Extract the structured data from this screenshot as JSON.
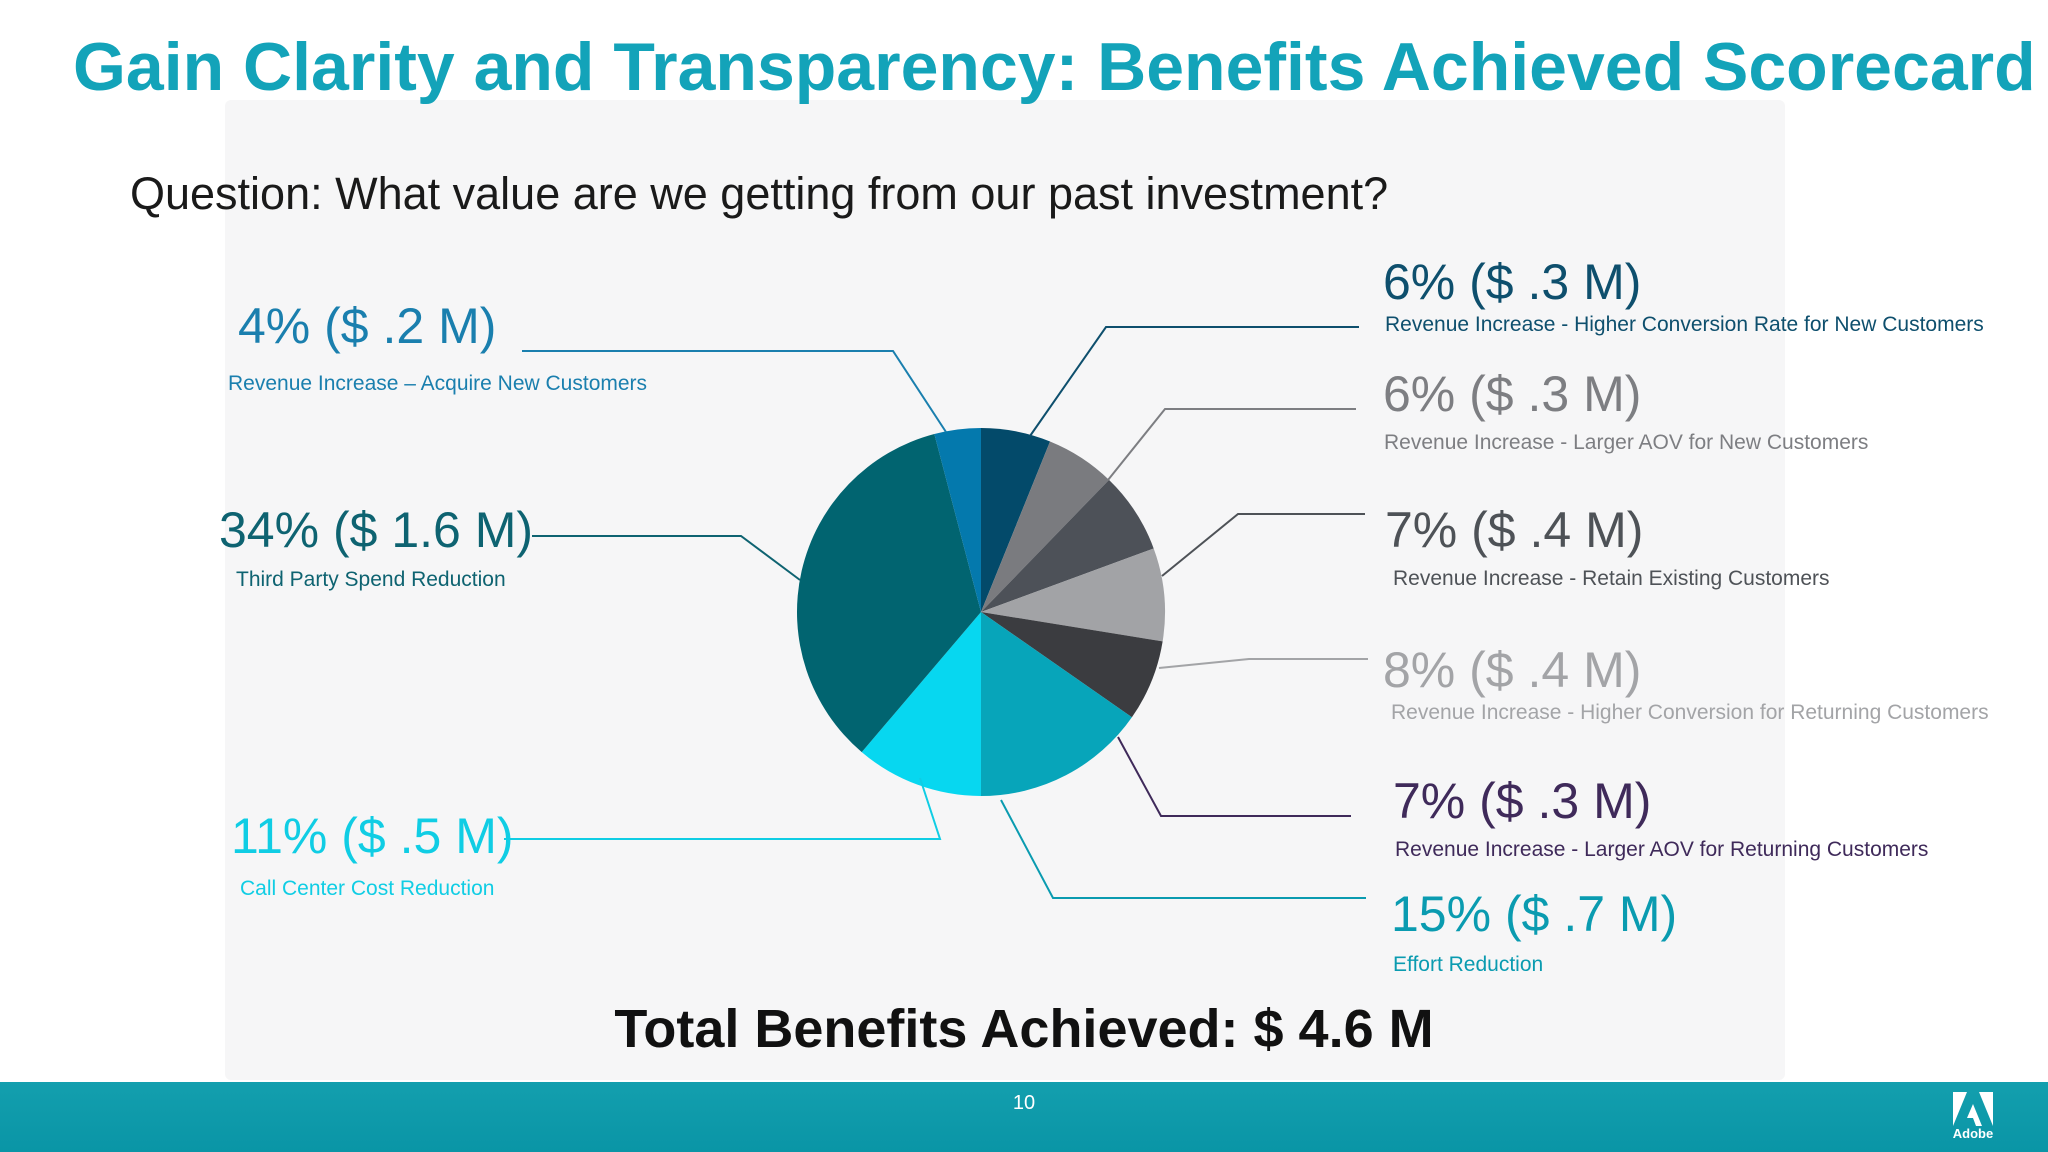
{
  "slide": {
    "title": "Gain Clarity and Transparency: Benefits Achieved Scorecard",
    "question": "Question: What value are we getting from our past investment?",
    "total": "Total Benefits Achieved: $ 4.6 M",
    "page_number": "10",
    "logo_text": "Adobe",
    "title_color": "#13a3b9",
    "footer_color": "#0a9aab"
  },
  "chart_data": {
    "type": "pie",
    "title": "",
    "slices": [
      {
        "id": "conv-new",
        "percent": 6,
        "value_m": 0.3,
        "value_label": "6% ($ .3 M)",
        "description": "Revenue Increase  - Higher Conversion Rate for New Customers",
        "color": "#034a6a",
        "label_color": "#0e4f6d"
      },
      {
        "id": "aov-new",
        "percent": 6,
        "value_m": 0.3,
        "value_label": "6% ($ .3 M)",
        "description": "Revenue Increase  - Larger AOV for New Customers",
        "color": "#7a7b7f",
        "label_color": "#7d7e82"
      },
      {
        "id": "retain",
        "percent": 7,
        "value_m": 0.4,
        "value_label": "7% ($ .4 M)",
        "description": "Revenue Increase  - Retain Existing Customers",
        "color": "#4d5158",
        "label_color": "#4e5257"
      },
      {
        "id": "conv-ret",
        "percent": 8,
        "value_m": 0.4,
        "value_label": "8% ($ .4 M)",
        "description": "Revenue Increase  - Higher Conversion for Returning Customers",
        "color": "#a2a3a6",
        "label_color": "#a3a4a7"
      },
      {
        "id": "aov-ret",
        "percent": 7,
        "value_m": 0.3,
        "value_label": "7% ($ .3 M)",
        "description": "Revenue Increase  - Larger AOV for Returning Customers",
        "color": "#3b3c40",
        "label_color": "#3f2a5a"
      },
      {
        "id": "effort",
        "percent": 15,
        "value_m": 0.7,
        "value_label": "15% ($ .7 M)",
        "description": "Effort Reduction",
        "color": "#07a5ba",
        "label_color": "#0a9bb0"
      },
      {
        "id": "call-center",
        "percent": 11,
        "value_m": 0.5,
        "value_label": "11% ($ .5 M)",
        "description": "Call Center Cost Reduction",
        "color": "#07d7f0",
        "label_color": "#10cde4"
      },
      {
        "id": "third-party",
        "percent": 34,
        "value_m": 1.6,
        "value_label": "34% ($ 1.6 M)",
        "description": "Third Party Spend Reduction",
        "color": "#016470",
        "label_color": "#0e6371"
      },
      {
        "id": "acquire-new",
        "percent": 4,
        "value_m": 0.2,
        "value_label": "4% ($ .2 M)",
        "description": "Revenue Increase – Acquire New Customers",
        "color": "#0479ad",
        "label_color": "#1a7fae"
      }
    ]
  }
}
